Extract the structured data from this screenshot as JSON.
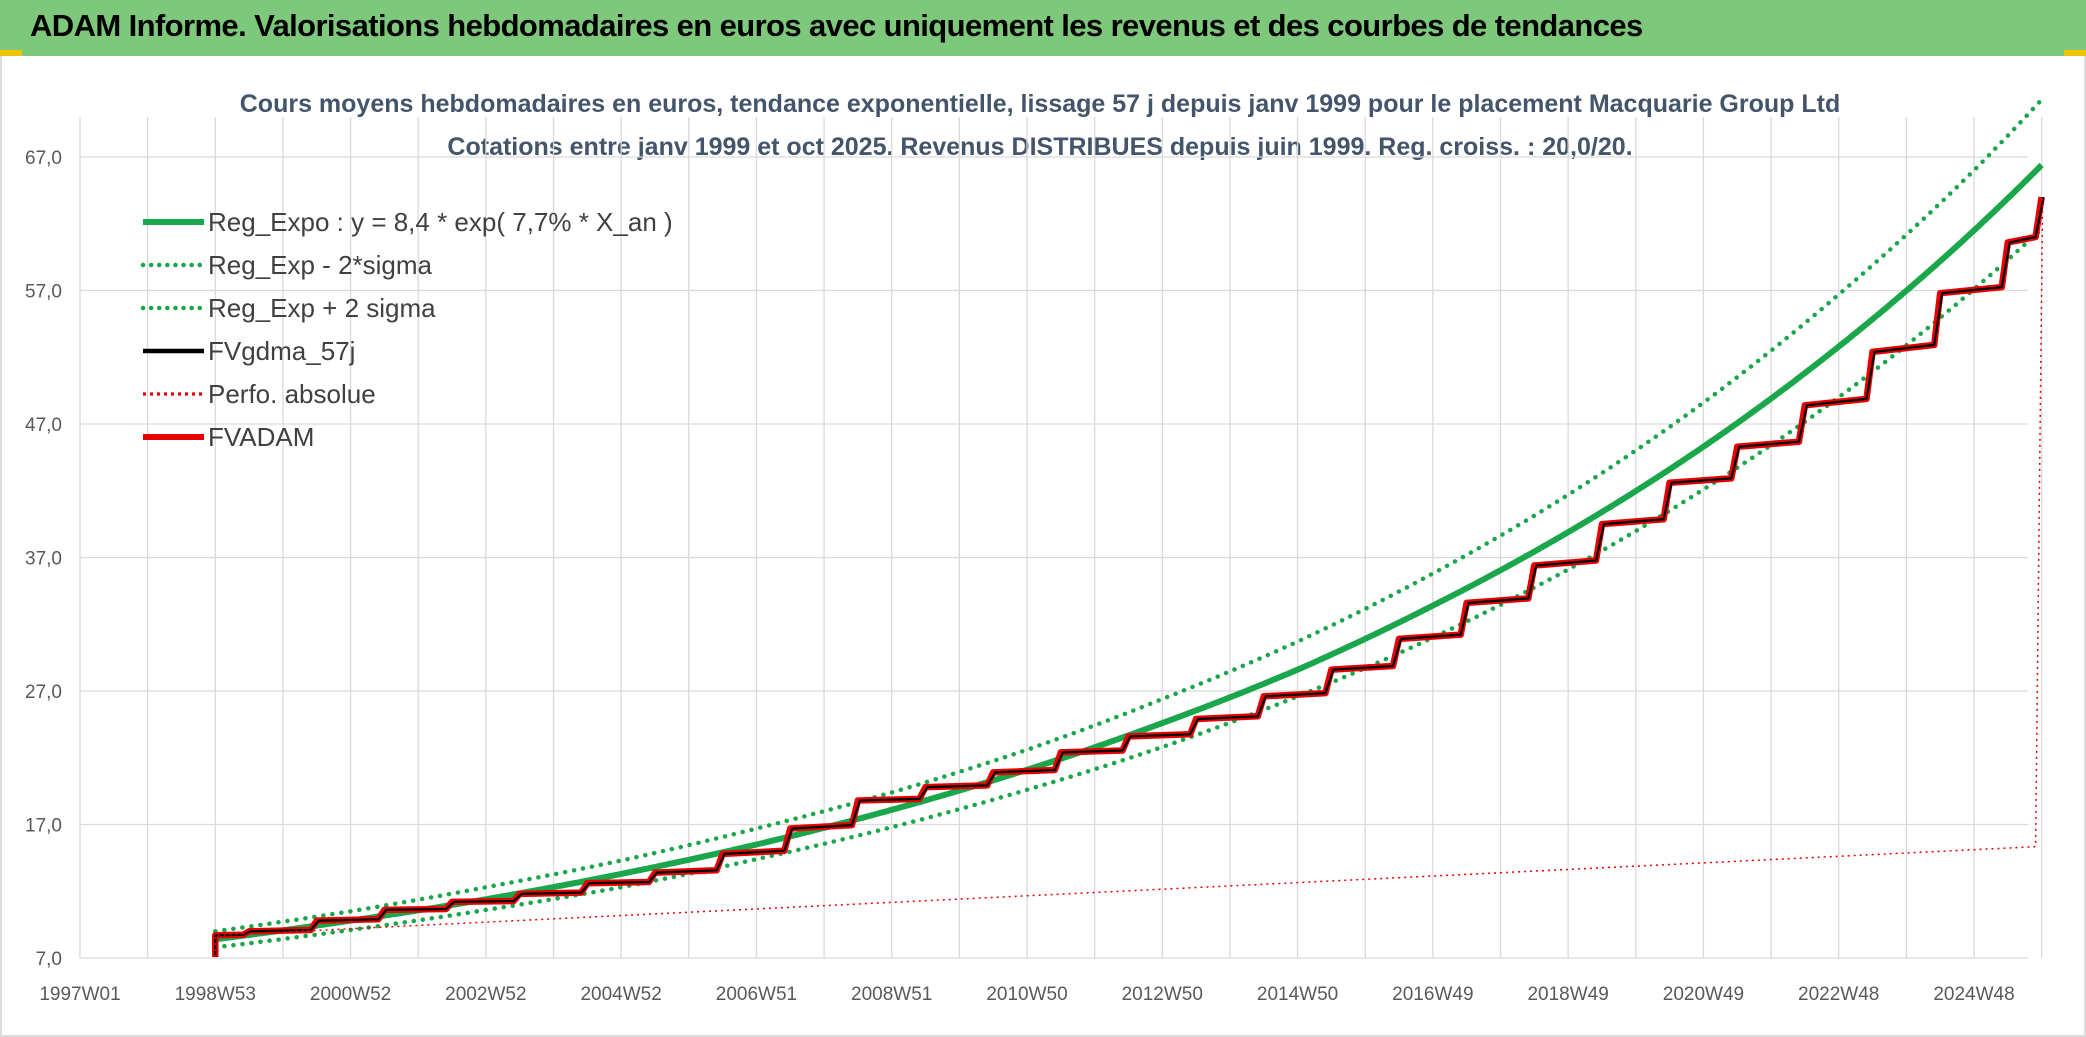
{
  "header": {
    "title": "ADAM Informe. Valorisations hebdomadaires en euros avec uniquement les revenus et des courbes de tendances"
  },
  "colors": {
    "banner": "#7dc87a",
    "reg_expo": "#1aa64a",
    "reg_sigma": "#1aa64a",
    "fvgdma": "#000000",
    "perfo": "#e60000",
    "fvadam": "#e60000",
    "grid": "#d9d9d9"
  },
  "chart_data": {
    "type": "line",
    "title_line1": "Cours moyens hebdomadaires en euros, tendance exponentielle, lissage 57 j depuis janv 1999 pour le placement Macquarie Group Ltd",
    "title_line2": "Cotations entre janv 1999 et oct 2025. Revenus DISTRIBUES depuis juin 1999. Reg. croiss. : 20,0/20.",
    "xlabel": "",
    "ylabel": "",
    "ylim": [
      7.0,
      67.0
    ],
    "y_ticks": [
      "7,0",
      "17,0",
      "27,0",
      "37,0",
      "47,0",
      "57,0",
      "67,0"
    ],
    "y_tick_values": [
      7,
      17,
      27,
      37,
      47,
      57,
      67
    ],
    "xlim": [
      1997.0,
      2025.0
    ],
    "x_ticks": [
      "1997W01",
      "1998W53",
      "2000W52",
      "2002W52",
      "2004W52",
      "2006W51",
      "2008W51",
      "2010W50",
      "2012W50",
      "2014W50",
      "2016W49",
      "2018W49",
      "2020W49",
      "2022W48",
      "2024W48"
    ],
    "x_tick_values": [
      1997,
      1999,
      2001,
      2003,
      2005,
      2007,
      2009,
      2011,
      2013,
      2015,
      2017,
      2019,
      2021,
      2023,
      2025
    ],
    "grid": true,
    "legend_position": "top-left",
    "series": [
      {
        "name": "Reg_Expo : y = 8,4 * exp( 7,7% *  X_an )",
        "style": "solid-thick",
        "color": "#1aa64a",
        "x": [
          1999,
          2001,
          2003,
          2005,
          2007,
          2009,
          2011,
          2013,
          2015,
          2017,
          2019,
          2021,
          2023,
          2025,
          2026
        ],
        "values": [
          8.4,
          9.8,
          11.4,
          13.3,
          15.5,
          18.1,
          21.1,
          24.6,
          28.6,
          33.4,
          38.9,
          45.3,
          52.8,
          61.5,
          66.4
        ]
      },
      {
        "name": "Reg_Exp - 2*sigma",
        "style": "dotted",
        "color": "#1aa64a",
        "x": [
          1999,
          2001,
          2003,
          2005,
          2007,
          2009,
          2011,
          2013,
          2015,
          2017,
          2019,
          2021,
          2023,
          2025,
          2026
        ],
        "values": [
          7.8,
          9.1,
          10.6,
          12.3,
          14.4,
          16.8,
          19.6,
          22.8,
          26.6,
          31.0,
          36.1,
          42.1,
          49.0,
          57.1,
          61.6
        ]
      },
      {
        "name": "Reg_Exp + 2 sigma",
        "style": "dotted",
        "color": "#1aa64a",
        "x": [
          1999,
          2001,
          2003,
          2005,
          2007,
          2009,
          2011,
          2013,
          2015,
          2017,
          2019,
          2021,
          2023,
          2025,
          2026
        ],
        "values": [
          9.0,
          10.5,
          12.3,
          14.3,
          16.7,
          19.4,
          22.6,
          26.4,
          30.7,
          35.8,
          41.7,
          48.6,
          56.7,
          66.0,
          71.3
        ]
      },
      {
        "name": "FVgdma_57j",
        "style": "solid",
        "color": "#000000",
        "x": [
          1999.0,
          1999.5,
          2000.5,
          2001.5,
          2002.5,
          2003.5,
          2004.5,
          2005.5,
          2006.5,
          2007.5,
          2008.5,
          2009.5,
          2010.5,
          2011.5,
          2012.5,
          2013.5,
          2014.5,
          2015.5,
          2016.5,
          2017.5,
          2018.5,
          2019.5,
          2020.5,
          2021.5,
          2022.5,
          2023.5,
          2024.5,
          2025.5,
          2026.0
        ],
        "values": [
          8.7,
          9.0,
          9.8,
          10.6,
          11.2,
          11.8,
          12.6,
          13.4,
          14.8,
          16.7,
          18.8,
          19.8,
          20.9,
          22.4,
          23.6,
          24.9,
          26.6,
          28.6,
          30.9,
          33.6,
          36.4,
          39.5,
          42.6,
          45.3,
          48.4,
          52.4,
          56.8,
          60.6,
          64.0
        ]
      },
      {
        "name": "Perfo. absolue",
        "style": "dotted",
        "color": "#e60000",
        "x": [
          1999.0,
          2026.0
        ],
        "values": [
          8.7,
          64.0
        ]
      },
      {
        "name": "FVADAM",
        "style": "solid-thick",
        "color": "#e60000",
        "x": [
          1999.0,
          1999.5,
          2000.5,
          2001.5,
          2002.5,
          2003.5,
          2004.5,
          2005.5,
          2006.5,
          2007.5,
          2008.5,
          2009.5,
          2010.5,
          2011.5,
          2012.5,
          2013.5,
          2014.5,
          2015.5,
          2016.5,
          2017.5,
          2018.5,
          2019.5,
          2020.5,
          2021.5,
          2022.5,
          2023.5,
          2024.5,
          2025.5,
          2026.0
        ],
        "values": [
          8.7,
          9.0,
          9.8,
          10.6,
          11.2,
          11.8,
          12.6,
          13.4,
          14.8,
          16.7,
          18.8,
          19.8,
          20.9,
          22.4,
          23.6,
          24.9,
          26.6,
          28.6,
          30.9,
          33.6,
          36.4,
          39.5,
          42.6,
          45.3,
          48.4,
          52.4,
          56.8,
          60.6,
          64.0
        ]
      }
    ]
  }
}
